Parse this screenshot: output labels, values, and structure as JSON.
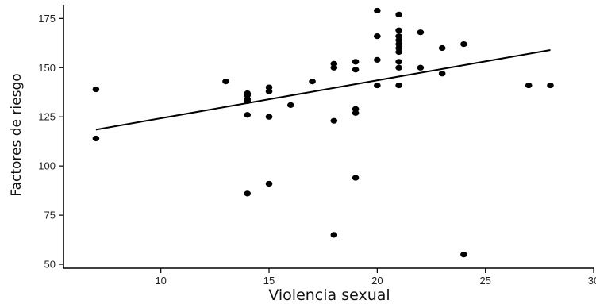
{
  "chart_data": {
    "type": "scatter",
    "title": "",
    "xlabel": "Violencia sexual",
    "ylabel": "Factores de riesgo",
    "xlim": [
      5.5,
      30
    ],
    "ylim": [
      48,
      182
    ],
    "xticks": [
      10,
      15,
      20,
      25,
      30
    ],
    "yticks": [
      50,
      75,
      100,
      125,
      150,
      175
    ],
    "grid": false,
    "points": [
      {
        "x": 7,
        "y": 139
      },
      {
        "x": 7,
        "y": 114
      },
      {
        "x": 13,
        "y": 143
      },
      {
        "x": 14,
        "y": 137
      },
      {
        "x": 14,
        "y": 136
      },
      {
        "x": 14,
        "y": 134
      },
      {
        "x": 14,
        "y": 133
      },
      {
        "x": 14,
        "y": 126
      },
      {
        "x": 14,
        "y": 86
      },
      {
        "x": 15,
        "y": 140
      },
      {
        "x": 15,
        "y": 138
      },
      {
        "x": 15,
        "y": 125
      },
      {
        "x": 15,
        "y": 91
      },
      {
        "x": 16,
        "y": 131
      },
      {
        "x": 17,
        "y": 143
      },
      {
        "x": 18,
        "y": 152
      },
      {
        "x": 18,
        "y": 150
      },
      {
        "x": 18,
        "y": 123
      },
      {
        "x": 18,
        "y": 65
      },
      {
        "x": 19,
        "y": 153
      },
      {
        "x": 19,
        "y": 149
      },
      {
        "x": 19,
        "y": 129
      },
      {
        "x": 19,
        "y": 127
      },
      {
        "x": 19,
        "y": 94
      },
      {
        "x": 20,
        "y": 179
      },
      {
        "x": 20,
        "y": 166
      },
      {
        "x": 20,
        "y": 154
      },
      {
        "x": 20,
        "y": 141
      },
      {
        "x": 21,
        "y": 177
      },
      {
        "x": 21,
        "y": 169
      },
      {
        "x": 21,
        "y": 166
      },
      {
        "x": 21,
        "y": 164
      },
      {
        "x": 21,
        "y": 162
      },
      {
        "x": 21,
        "y": 160
      },
      {
        "x": 21,
        "y": 158
      },
      {
        "x": 21,
        "y": 153
      },
      {
        "x": 21,
        "y": 150
      },
      {
        "x": 21,
        "y": 141
      },
      {
        "x": 22,
        "y": 168
      },
      {
        "x": 22,
        "y": 150
      },
      {
        "x": 23,
        "y": 160
      },
      {
        "x": 23,
        "y": 147
      },
      {
        "x": 24,
        "y": 162
      },
      {
        "x": 24,
        "y": 55
      },
      {
        "x": 27,
        "y": 141
      },
      {
        "x": 28,
        "y": 141
      }
    ],
    "trendline": {
      "x": [
        7,
        28
      ],
      "y": [
        118.5,
        159
      ]
    }
  }
}
